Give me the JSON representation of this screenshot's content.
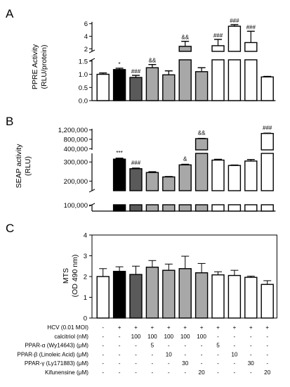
{
  "panel_labels": [
    "A",
    "B",
    "C"
  ],
  "fills": [
    "#ffffff",
    "#000000",
    "#5a5a5a",
    "#a8a8a8",
    "#a8a8a8",
    "#a8a8a8",
    "#a8a8a8",
    "#ffffff",
    "#ffffff",
    "#ffffff",
    "#ffffff"
  ],
  "chart_data": [
    {
      "type": "bar",
      "panel": "A",
      "ylabel": "PPRE Activity",
      "ylabel2": "(RLU/protein)",
      "broken_axis": true,
      "lower_ticks": [
        "0.0",
        "0.5",
        "1.0",
        "1.5"
      ],
      "upper_ticks": [
        "2",
        "4",
        "6"
      ],
      "ylim_lower": [
        0,
        1.55
      ],
      "ylim_upper": [
        1.6,
        6.3
      ],
      "values": [
        1.0,
        1.18,
        0.88,
        1.25,
        0.98,
        2.4,
        1.1,
        2.5,
        5.6,
        3.0,
        0.9
      ],
      "errors": [
        0.05,
        0.05,
        0.08,
        0.12,
        0.15,
        0.8,
        0.15,
        1.0,
        0.25,
        1.8,
        0.02
      ],
      "significance": [
        "",
        "*",
        "###",
        "&&",
        "",
        "&&",
        "",
        "###",
        "###",
        "###",
        ""
      ]
    },
    {
      "type": "bar",
      "panel": "B",
      "ylabel": "SEAP activity",
      "ylabel2": "(RLU)",
      "broken_axis": true,
      "lower_ticks": [
        "100,000"
      ],
      "middle_ticks": [
        "200,000",
        "300,000"
      ],
      "upper_ticks": [
        "400,000",
        "800,000",
        "1,200,000"
      ],
      "ylim_lower": [
        0,
        105000
      ],
      "ylim_middle": [
        150000,
        345000
      ],
      "ylim_upper": [
        350000,
        1250000
      ],
      "values": [
        0,
        315000,
        265000,
        245000,
        222000,
        285000,
        830000,
        310000,
        282000,
        305000,
        1050000
      ],
      "errors": [
        0,
        5000,
        3000,
        4000,
        2000,
        3000,
        10000,
        4000,
        2000,
        8000,
        12000
      ],
      "significance": [
        "",
        "***",
        "###",
        "",
        "",
        "&",
        "&&",
        "",
        "",
        "",
        "###"
      ]
    },
    {
      "type": "bar",
      "panel": "C",
      "ylabel": "MTS",
      "ylabel2": "(OD 490 nm)",
      "ylim": [
        0,
        4
      ],
      "ticks": [
        "0",
        "1",
        "2",
        "3",
        "4"
      ],
      "values": [
        2.0,
        2.25,
        2.1,
        2.45,
        2.3,
        2.38,
        2.18,
        2.08,
        2.05,
        1.96,
        1.62
      ],
      "errors": [
        0.38,
        0.22,
        0.4,
        0.32,
        0.3,
        0.6,
        0.45,
        0.15,
        0.25,
        0.06,
        0.18
      ]
    }
  ],
  "conditions": [
    {
      "label": "HCV (0.01 MOI)",
      "values": [
        "-",
        "+",
        "+",
        "+",
        "+",
        "+",
        "+",
        "+",
        "+",
        "+",
        "+"
      ]
    },
    {
      "label": "calcitriol (nM)",
      "values": [
        "-",
        "-",
        "100",
        "100",
        "100",
        "100",
        "100",
        "-",
        "-",
        "-",
        "-"
      ]
    },
    {
      "label": "PPAR-α (Wy14643) (μM)",
      "values": [
        "-",
        "-",
        "-",
        "5",
        "-",
        "-",
        "-",
        "5",
        "-",
        "-",
        "-"
      ]
    },
    {
      "label": "PPAR-β (Linoleic Acid) (μM)",
      "values": [
        "-",
        "-",
        "-",
        "-",
        "10",
        "-",
        "-",
        "-",
        "10",
        "-",
        "-"
      ]
    },
    {
      "label": "PPAR-γ (Ly171883) (μM)",
      "values": [
        "-",
        "-",
        "-",
        "-",
        "-",
        "30",
        "-",
        "-",
        "-",
        "30",
        "-"
      ]
    },
    {
      "label": "Kifunensine (μM)",
      "values": [
        "-",
        "-",
        "-",
        "-",
        "-",
        "-",
        "20",
        "-",
        "-",
        "-",
        "20"
      ]
    }
  ]
}
